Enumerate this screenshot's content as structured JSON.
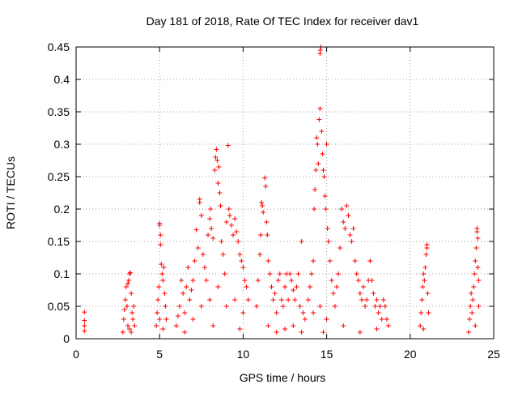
{
  "chart_data": {
    "type": "scatter",
    "title": "Day 181 of 2018, Rate Of TEC Index for receiver dav1",
    "xlabel": "GPS time / hours",
    "ylabel": "ROTI / TECUs",
    "xlim": [
      0,
      25
    ],
    "ylim": [
      0,
      0.45
    ],
    "x_ticks": [
      0,
      5,
      10,
      15,
      20,
      25
    ],
    "y_ticks": [
      0,
      0.05,
      0.1,
      0.15,
      0.2,
      0.25,
      0.3,
      0.35,
      0.4,
      0.45
    ],
    "x_tick_labels": [
      "0",
      "5",
      "10",
      "15",
      "20",
      "25"
    ],
    "y_tick_labels": [
      "0",
      "0.05",
      "0.1",
      "0.15",
      "0.2",
      "0.25",
      "0.3",
      "0.35",
      "0.4",
      "0.45"
    ],
    "grid": true,
    "marker": "+",
    "marker_color": "#ff0000",
    "series": [
      {
        "points": [
          [
            0.5,
            0.012
          ],
          [
            0.5,
            0.02
          ],
          [
            0.5,
            0.028
          ],
          [
            0.5,
            0.041
          ],
          [
            2.8,
            0.01
          ],
          [
            2.85,
            0.03
          ],
          [
            2.9,
            0.045
          ],
          [
            2.95,
            0.06
          ],
          [
            3.0,
            0.08
          ],
          [
            3.05,
            0.05
          ],
          [
            3.1,
            0.085
          ],
          [
            3.15,
            0.09
          ],
          [
            3.2,
            0.1
          ],
          [
            3.25,
            0.102
          ],
          [
            3.3,
            0.07
          ],
          [
            3.35,
            0.04
          ],
          [
            3.4,
            0.03
          ],
          [
            3.45,
            0.05
          ],
          [
            3.5,
            0.02
          ],
          [
            3.1,
            0.02
          ],
          [
            3.2,
            0.015
          ],
          [
            3.3,
            0.01
          ],
          [
            4.8,
            0.02
          ],
          [
            4.85,
            0.04
          ],
          [
            4.9,
            0.06
          ],
          [
            4.95,
            0.08
          ],
          [
            5.0,
            0.175
          ],
          [
            5.0,
            0.178
          ],
          [
            5.05,
            0.16
          ],
          [
            5.05,
            0.145
          ],
          [
            5.1,
            0.115
          ],
          [
            5.15,
            0.1
          ],
          [
            5.2,
            0.09
          ],
          [
            5.25,
            0.11
          ],
          [
            5.3,
            0.07
          ],
          [
            5.35,
            0.05
          ],
          [
            5.4,
            0.03
          ],
          [
            5.0,
            0.03
          ],
          [
            5.2,
            0.015
          ],
          [
            6.0,
            0.02
          ],
          [
            6.1,
            0.035
          ],
          [
            6.2,
            0.05
          ],
          [
            6.3,
            0.09
          ],
          [
            6.4,
            0.07
          ],
          [
            6.5,
            0.04
          ],
          [
            6.6,
            0.08
          ],
          [
            6.7,
            0.11
          ],
          [
            6.8,
            0.06
          ],
          [
            6.9,
            0.075
          ],
          [
            7.0,
            0.09
          ],
          [
            7.1,
            0.12
          ],
          [
            7.2,
            0.168
          ],
          [
            7.3,
            0.14
          ],
          [
            7.4,
            0.21
          ],
          [
            7.4,
            0.215
          ],
          [
            7.5,
            0.19
          ],
          [
            7.6,
            0.13
          ],
          [
            7.7,
            0.11
          ],
          [
            7.8,
            0.09
          ],
          [
            7.9,
            0.16
          ],
          [
            8.0,
            0.185
          ],
          [
            8.05,
            0.2
          ],
          [
            8.1,
            0.17
          ],
          [
            8.2,
            0.155
          ],
          [
            8.3,
            0.26
          ],
          [
            8.35,
            0.28
          ],
          [
            8.4,
            0.292
          ],
          [
            8.45,
            0.275
          ],
          [
            8.5,
            0.24
          ],
          [
            8.55,
            0.265
          ],
          [
            8.6,
            0.225
          ],
          [
            8.65,
            0.205
          ],
          [
            8.7,
            0.15
          ],
          [
            8.8,
            0.13
          ],
          [
            8.9,
            0.1
          ],
          [
            9.0,
            0.18
          ],
          [
            9.1,
            0.298
          ],
          [
            9.15,
            0.2
          ],
          [
            9.2,
            0.19
          ],
          [
            9.3,
            0.175
          ],
          [
            9.4,
            0.16
          ],
          [
            9.5,
            0.185
          ],
          [
            9.6,
            0.165
          ],
          [
            9.7,
            0.15
          ],
          [
            9.8,
            0.13
          ],
          [
            9.9,
            0.12
          ],
          [
            10.0,
            0.11
          ],
          [
            10.1,
            0.09
          ],
          [
            10.2,
            0.08
          ],
          [
            10.3,
            0.06
          ],
          [
            7.0,
            0.03
          ],
          [
            7.5,
            0.05
          ],
          [
            8.0,
            0.06
          ],
          [
            8.5,
            0.08
          ],
          [
            9.0,
            0.05
          ],
          [
            9.5,
            0.06
          ],
          [
            10.0,
            0.04
          ],
          [
            6.5,
            0.01
          ],
          [
            8.2,
            0.02
          ],
          [
            9.8,
            0.015
          ],
          [
            10.8,
            0.05
          ],
          [
            10.9,
            0.09
          ],
          [
            11.0,
            0.13
          ],
          [
            11.05,
            0.16
          ],
          [
            11.1,
            0.21
          ],
          [
            11.15,
            0.205
          ],
          [
            11.2,
            0.195
          ],
          [
            11.3,
            0.248
          ],
          [
            11.35,
            0.235
          ],
          [
            11.4,
            0.18
          ],
          [
            11.45,
            0.16
          ],
          [
            11.5,
            0.12
          ],
          [
            11.6,
            0.1
          ],
          [
            11.7,
            0.08
          ],
          [
            11.8,
            0.06
          ],
          [
            11.9,
            0.07
          ],
          [
            12.0,
            0.04
          ],
          [
            12.1,
            0.09
          ],
          [
            12.2,
            0.1
          ],
          [
            12.3,
            0.06
          ],
          [
            12.4,
            0.05
          ],
          [
            12.5,
            0.08
          ],
          [
            12.6,
            0.1
          ],
          [
            12.7,
            0.06
          ],
          [
            12.8,
            0.1
          ],
          [
            12.9,
            0.09
          ],
          [
            13.0,
            0.075
          ],
          [
            13.1,
            0.06
          ],
          [
            13.2,
            0.08
          ],
          [
            13.3,
            0.1
          ],
          [
            13.4,
            0.05
          ],
          [
            13.5,
            0.15
          ],
          [
            13.6,
            0.04
          ],
          [
            13.7,
            0.03
          ],
          [
            11.5,
            0.02
          ],
          [
            12.0,
            0.01
          ],
          [
            12.5,
            0.015
          ],
          [
            13.0,
            0.02
          ],
          [
            13.5,
            0.01
          ],
          [
            13.9,
            0.06
          ],
          [
            14.0,
            0.08
          ],
          [
            14.1,
            0.1
          ],
          [
            14.2,
            0.12
          ],
          [
            14.25,
            0.2
          ],
          [
            14.3,
            0.23
          ],
          [
            14.35,
            0.26
          ],
          [
            14.4,
            0.31
          ],
          [
            14.45,
            0.3
          ],
          [
            14.5,
            0.27
          ],
          [
            14.55,
            0.338
          ],
          [
            14.6,
            0.355
          ],
          [
            14.6,
            0.44
          ],
          [
            14.62,
            0.445
          ],
          [
            14.65,
            0.45
          ],
          [
            14.7,
            0.32
          ],
          [
            14.75,
            0.285
          ],
          [
            14.8,
            0.26
          ],
          [
            14.85,
            0.25
          ],
          [
            14.9,
            0.22
          ],
          [
            14.95,
            0.2
          ],
          [
            15.0,
            0.3
          ],
          [
            15.05,
            0.17
          ],
          [
            15.1,
            0.15
          ],
          [
            15.2,
            0.12
          ],
          [
            15.3,
            0.09
          ],
          [
            15.4,
            0.07
          ],
          [
            14.2,
            0.04
          ],
          [
            14.6,
            0.05
          ],
          [
            15.0,
            0.03
          ],
          [
            14.8,
            0.01
          ],
          [
            15.5,
            0.05
          ],
          [
            15.6,
            0.08
          ],
          [
            15.7,
            0.1
          ],
          [
            15.8,
            0.14
          ],
          [
            15.9,
            0.2
          ],
          [
            16.0,
            0.18
          ],
          [
            16.1,
            0.17
          ],
          [
            16.2,
            0.205
          ],
          [
            16.3,
            0.19
          ],
          [
            16.4,
            0.16
          ],
          [
            16.5,
            0.15
          ],
          [
            16.6,
            0.17
          ],
          [
            16.7,
            0.12
          ],
          [
            16.8,
            0.1
          ],
          [
            16.9,
            0.09
          ],
          [
            17.0,
            0.07
          ],
          [
            17.1,
            0.06
          ],
          [
            17.2,
            0.08
          ],
          [
            17.3,
            0.05
          ],
          [
            17.4,
            0.06
          ],
          [
            17.5,
            0.09
          ],
          [
            17.6,
            0.12
          ],
          [
            17.7,
            0.09
          ],
          [
            17.8,
            0.07
          ],
          [
            17.9,
            0.05
          ],
          [
            18.0,
            0.06
          ],
          [
            18.1,
            0.04
          ],
          [
            18.2,
            0.05
          ],
          [
            18.3,
            0.03
          ],
          [
            18.4,
            0.06
          ],
          [
            18.5,
            0.05
          ],
          [
            18.6,
            0.03
          ],
          [
            18.7,
            0.02
          ],
          [
            16.0,
            0.02
          ],
          [
            17.0,
            0.01
          ],
          [
            18.0,
            0.015
          ],
          [
            20.6,
            0.02
          ],
          [
            20.65,
            0.04
          ],
          [
            20.7,
            0.06
          ],
          [
            20.75,
            0.08
          ],
          [
            20.8,
            0.1
          ],
          [
            20.85,
            0.09
          ],
          [
            20.9,
            0.11
          ],
          [
            20.95,
            0.13
          ],
          [
            21.0,
            0.145
          ],
          [
            21.0,
            0.14
          ],
          [
            21.05,
            0.07
          ],
          [
            21.1,
            0.04
          ],
          [
            20.8,
            0.015
          ],
          [
            23.5,
            0.01
          ],
          [
            23.55,
            0.03
          ],
          [
            23.6,
            0.05
          ],
          [
            23.65,
            0.07
          ],
          [
            23.7,
            0.04
          ],
          [
            23.75,
            0.06
          ],
          [
            23.8,
            0.08
          ],
          [
            23.85,
            0.1
          ],
          [
            23.9,
            0.12
          ],
          [
            23.95,
            0.14
          ],
          [
            24.0,
            0.17
          ],
          [
            24.0,
            0.165
          ],
          [
            24.05,
            0.155
          ],
          [
            24.05,
            0.11
          ],
          [
            24.1,
            0.09
          ],
          [
            24.1,
            0.05
          ],
          [
            23.9,
            0.02
          ]
        ]
      }
    ]
  }
}
